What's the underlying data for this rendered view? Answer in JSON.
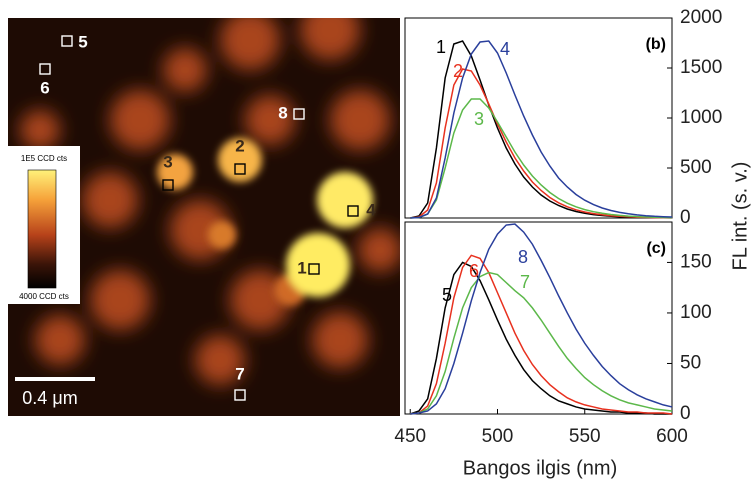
{
  "image": {
    "markers": [
      "1",
      "2",
      "3",
      "4",
      "5",
      "6",
      "7",
      "8"
    ],
    "scale_bar": "0.4 μm",
    "colorbar_max": "1E5 CCD cts",
    "colorbar_min": "4000 CCD cts"
  },
  "chart_data": [
    {
      "type": "line",
      "title": "(b)",
      "ylabel": "FL int. (s. v.)",
      "x": [
        450,
        455,
        460,
        465,
        470,
        475,
        480,
        485,
        490,
        495,
        500,
        505,
        510,
        515,
        520,
        525,
        530,
        535,
        540,
        545,
        550,
        555,
        560,
        565,
        570,
        575,
        580,
        585,
        590,
        595,
        600
      ],
      "xlim": [
        447,
        600
      ],
      "ylim": [
        0,
        2000
      ],
      "yticks": [
        0,
        500,
        1000,
        1500,
        2000
      ],
      "series": [
        {
          "name": "1",
          "color": "#000000",
          "values": [
            0,
            20,
            150,
            700,
            1400,
            1740,
            1770,
            1620,
            1380,
            1130,
            900,
            700,
            540,
            410,
            310,
            230,
            170,
            125,
            90,
            65,
            47,
            34,
            25,
            18,
            13,
            9,
            6,
            4,
            3,
            2,
            1
          ]
        },
        {
          "name": "2",
          "color": "#e8311f",
          "values": [
            0,
            10,
            80,
            350,
            900,
            1330,
            1490,
            1470,
            1330,
            1140,
            940,
            760,
            600,
            470,
            360,
            275,
            205,
            152,
            112,
            82,
            60,
            44,
            32,
            23,
            17,
            12,
            8,
            6,
            4,
            3,
            2
          ]
        },
        {
          "name": "3",
          "color": "#5cb84a",
          "values": [
            0,
            5,
            40,
            180,
            500,
            850,
            1080,
            1190,
            1190,
            1100,
            960,
            810,
            660,
            530,
            420,
            330,
            255,
            195,
            148,
            112,
            84,
            63,
            47,
            35,
            26,
            19,
            14,
            10,
            7,
            5,
            4
          ]
        },
        {
          "name": "4",
          "color": "#2a3f9c",
          "values": [
            0,
            5,
            40,
            200,
            600,
            1050,
            1400,
            1640,
            1760,
            1770,
            1650,
            1450,
            1230,
            1020,
            830,
            660,
            520,
            400,
            310,
            235,
            178,
            134,
            100,
            75,
            56,
            42,
            31,
            23,
            17,
            13,
            10
          ]
        }
      ]
    },
    {
      "type": "line",
      "title": "(c)",
      "xlabel": "Bangos ilgis (nm)",
      "x": [
        450,
        455,
        460,
        465,
        470,
        475,
        480,
        485,
        490,
        495,
        500,
        505,
        510,
        515,
        520,
        525,
        530,
        535,
        540,
        545,
        550,
        555,
        560,
        565,
        570,
        575,
        580,
        585,
        590,
        595,
        600
      ],
      "xlim": [
        447,
        600
      ],
      "xticks": [
        450,
        500,
        550,
        600
      ],
      "ylim": [
        0,
        190
      ],
      "yticks": [
        0,
        50,
        100,
        150
      ],
      "series": [
        {
          "name": "5",
          "color": "#000000",
          "values": [
            0,
            3,
            15,
            55,
            105,
            138,
            150,
            146,
            132,
            113,
            93,
            74,
            58,
            44,
            33,
            25,
            18,
            13,
            10,
            7,
            5,
            4,
            3,
            2,
            2,
            1,
            1,
            1,
            0,
            0,
            0
          ]
        },
        {
          "name": "6",
          "color": "#e8311f",
          "values": [
            0,
            1,
            8,
            30,
            70,
            115,
            145,
            157,
            154,
            140,
            120,
            100,
            80,
            63,
            49,
            38,
            29,
            22,
            16,
            12,
            9,
            7,
            5,
            4,
            3,
            2,
            2,
            1,
            1,
            1,
            0
          ]
        },
        {
          "name": "7",
          "color": "#5cb84a",
          "values": [
            0,
            1,
            5,
            18,
            42,
            75,
            105,
            125,
            136,
            140,
            138,
            130,
            122,
            115,
            105,
            93,
            80,
            67,
            55,
            45,
            36,
            29,
            23,
            18,
            14,
            11,
            9,
            7,
            5,
            4,
            3
          ]
        },
        {
          "name": "8",
          "color": "#2a3f9c",
          "values": [
            0,
            1,
            3,
            10,
            25,
            50,
            80,
            112,
            140,
            163,
            178,
            187,
            188,
            180,
            168,
            152,
            135,
            117,
            100,
            84,
            70,
            58,
            47,
            38,
            30,
            24,
            19,
            15,
            12,
            9,
            7
          ]
        }
      ]
    }
  ]
}
